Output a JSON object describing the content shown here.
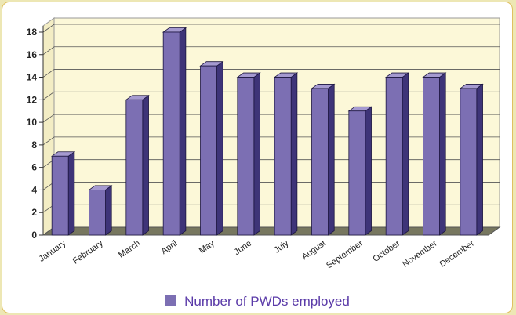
{
  "chart_data": {
    "type": "bar",
    "categories": [
      "January",
      "February",
      "March",
      "April",
      "May",
      "June",
      "July",
      "August",
      "September",
      "October",
      "November",
      "December"
    ],
    "series": [
      {
        "name": "Number of PWDs employed",
        "values": [
          7,
          4,
          12,
          18,
          15,
          14,
          14,
          13,
          11,
          14,
          14,
          13
        ]
      }
    ],
    "yticks": [
      "0",
      "2",
      "4",
      "6",
      "8",
      "10",
      "12",
      "14",
      "16",
      "18"
    ],
    "ylim": [
      0,
      18
    ],
    "grid": true,
    "legend_position": "bottom-center",
    "colors": {
      "bar_front": "#7c6fb3",
      "bar_top": "#a59ad0",
      "bar_side": "#3e3478",
      "plot_background": "#fcf8d8",
      "floor": "#77775f",
      "legend_text": "#5a3aa8"
    }
  }
}
